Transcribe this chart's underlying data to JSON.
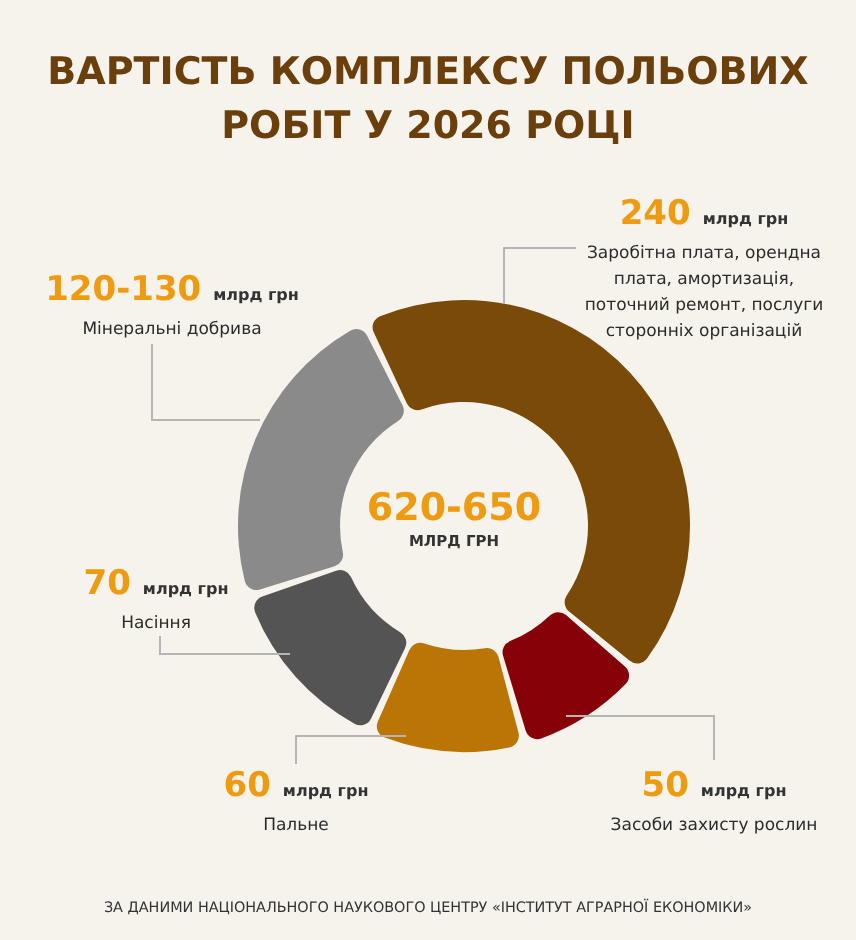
{
  "chart_data": {
    "type": "donut",
    "title": "ВАРТІСТЬ КОМПЛЕКСУ ПОЛЬОВИХ РОБІТ У 2026 РОЦІ",
    "categories": [
      "Заробітна плата, орендна плата, амортизація, поточний ремонт, послуги сторонніх організацій",
      "Засоби захисту рослин",
      "Пальне",
      "Насіння",
      "Мінеральні добрива"
    ],
    "values": [
      240,
      50,
      60,
      70,
      125
    ],
    "value_labels": [
      "240 млрд грн",
      "50 млрд грн",
      "60 млрд грн",
      "70 млрд грн",
      "120-130 млрд грн"
    ],
    "colors": [
      "#7a4a08",
      "#870208",
      "#bb7504",
      "#555455",
      "#8a8a8a"
    ],
    "annotations": [
      "620-650",
      "МЛРД ГРН",
      "ЗА ДАНИМИ НАЦІОНАЛЬНОГО НАУКОВОГО ЦЕНТРУ «ІНСТИТУТ АГРАРНОЇ ЕКОНОМІКИ»"
    ]
  }
}
